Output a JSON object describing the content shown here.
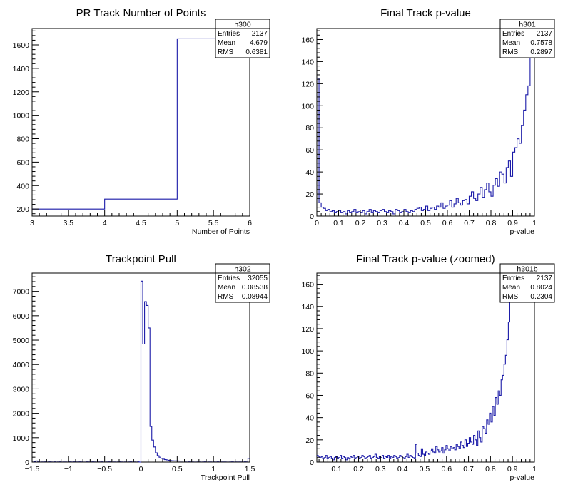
{
  "chart_data": [
    {
      "type": "histogram",
      "title": "PR Track Number of Points",
      "xlabel": "Number of Points",
      "ylabel": "",
      "xlim": [
        3,
        6
      ],
      "ylim": [
        140,
        1740
      ],
      "xticks": [
        3,
        3.5,
        4,
        4.5,
        5,
        5.5,
        6
      ],
      "xtick_labels": [
        "3",
        "3.5",
        "4",
        "4.5",
        "5",
        "5.5",
        "6"
      ],
      "yticks": [
        200,
        400,
        600,
        800,
        1000,
        1200,
        1400,
        1600
      ],
      "ytick_labels": [
        "200",
        "400",
        "600",
        "800",
        "1000",
        "1200",
        "1400",
        "1600"
      ],
      "bins": [
        [
          3,
          4,
          200
        ],
        [
          4,
          5,
          285
        ],
        [
          5,
          6,
          1652
        ]
      ],
      "stats": {
        "name": "h300",
        "rows": [
          {
            "label": "Entries",
            "value": "2137"
          },
          {
            "label": "Mean",
            "value": "4.679"
          },
          {
            "label": "RMS",
            "value": "0.6381"
          }
        ]
      }
    },
    {
      "type": "histogram",
      "title": "Final Track p-value",
      "xlabel": "p-value",
      "ylabel": "",
      "xlim": [
        0,
        1
      ],
      "ylim": [
        0,
        170
      ],
      "xticks": [
        0,
        0.1,
        0.2,
        0.3,
        0.4,
        0.5,
        0.6,
        0.7,
        0.8,
        0.9,
        1
      ],
      "xtick_labels": [
        "0",
        "0.1",
        "0.2",
        "0.3",
        "0.4",
        "0.5",
        "0.6",
        "0.7",
        "0.8",
        "0.9",
        "1"
      ],
      "yticks": [
        0,
        20,
        40,
        60,
        80,
        100,
        120,
        140,
        160
      ],
      "ytick_labels": [
        "0",
        "20",
        "40",
        "60",
        "80",
        "100",
        "120",
        "140",
        "160"
      ],
      "bin_width": 0.01,
      "x_start": 0,
      "values": [
        125,
        12,
        8,
        7,
        5,
        6,
        4,
        5,
        3,
        4,
        5,
        3,
        4,
        2,
        5,
        3,
        4,
        6,
        3,
        4,
        3,
        5,
        2,
        4,
        6,
        3,
        5,
        4,
        3,
        5,
        6,
        4,
        3,
        5,
        4,
        2,
        6,
        5,
        3,
        4,
        6,
        4,
        3,
        5,
        4,
        6,
        7,
        8,
        5,
        6,
        9,
        5,
        7,
        8,
        6,
        9,
        8,
        12,
        7,
        9,
        10,
        14,
        8,
        11,
        16,
        12,
        10,
        14,
        15,
        11,
        18,
        22,
        16,
        14,
        20,
        26,
        17,
        24,
        30,
        22,
        18,
        28,
        34,
        27,
        40,
        38,
        30,
        44,
        50,
        36,
        58,
        62,
        70,
        66,
        82,
        96,
        110,
        118,
        148,
        170
      ],
      "stats": {
        "name": "h301",
        "rows": [
          {
            "label": "Entries",
            "value": "2137"
          },
          {
            "label": "Mean",
            "value": "0.7578"
          },
          {
            "label": "RMS",
            "value": "0.2897"
          }
        ]
      }
    },
    {
      "type": "histogram",
      "title": "Trackpoint Pull",
      "xlabel": "Trackpoint Pull",
      "ylabel": "",
      "xlim": [
        -1.5,
        1.5
      ],
      "ylim": [
        0,
        7750
      ],
      "xticks": [
        -1.5,
        -1,
        -0.5,
        0,
        0.5,
        1,
        1.5
      ],
      "xtick_labels": [
        "−1.5",
        "−1",
        "−0.5",
        "0",
        "0.5",
        "1",
        "1.5"
      ],
      "yticks": [
        0,
        1000,
        2000,
        3000,
        4000,
        5000,
        6000,
        7000
      ],
      "ytick_labels": [
        "0",
        "1000",
        "2000",
        "3000",
        "4000",
        "5000",
        "6000",
        "7000"
      ],
      "bin_width": 0.025,
      "x_start": -1.5,
      "values": [
        40,
        30,
        45,
        35,
        40,
        38,
        42,
        36,
        40,
        35,
        38,
        40,
        36,
        42,
        38,
        35,
        40,
        37,
        39,
        41,
        36,
        38,
        40,
        35,
        37,
        39,
        36,
        38,
        40,
        42,
        36,
        38,
        40,
        35,
        39,
        41,
        37,
        38,
        36,
        40,
        42,
        38,
        35,
        39,
        41,
        37,
        40,
        38,
        36,
        39,
        41,
        38,
        40,
        37,
        36,
        42,
        38,
        40,
        39,
        0,
        7420,
        4840,
        6580,
        6420,
        5500,
        1460,
        900,
        620,
        380,
        260,
        200,
        150,
        120,
        100,
        90,
        70,
        60,
        55,
        50,
        48,
        45,
        42,
        40,
        44,
        38,
        40,
        36,
        42,
        38,
        40,
        41,
        37,
        39,
        40,
        38,
        36,
        42,
        39,
        37,
        40,
        38,
        41,
        36,
        40,
        39,
        38,
        37,
        40,
        42,
        38,
        36,
        40,
        39,
        41,
        38,
        37,
        40,
        36,
        39,
        150
      ],
      "stats": {
        "name": "h302",
        "rows": [
          {
            "label": "Entries",
            "value": "32055"
          },
          {
            "label": "Mean",
            "value": "0.08538"
          },
          {
            "label": "RMS",
            "value": "0.08944"
          }
        ]
      }
    },
    {
      "type": "histogram",
      "title": "Final Track p-value (zoomed)",
      "xlabel": "p-value",
      "ylabel": "",
      "xlim": [
        0.01,
        1
      ],
      "ylim": [
        0,
        170
      ],
      "xticks": [
        0.1,
        0.2,
        0.3,
        0.4,
        0.5,
        0.6,
        0.7,
        0.8,
        0.9,
        1
      ],
      "xtick_labels": [
        "0.1",
        "0.2",
        "0.3",
        "0.4",
        "0.5",
        "0.6",
        "0.7",
        "0.8",
        "0.9",
        "1"
      ],
      "yticks": [
        0,
        20,
        40,
        60,
        80,
        100,
        120,
        140,
        160
      ],
      "ytick_labels": [
        "0",
        "20",
        "40",
        "60",
        "80",
        "100",
        "120",
        "140",
        "160"
      ],
      "bin_width": 0.0066,
      "x_start": 0.01,
      "values": [
        6,
        5,
        4,
        5,
        3,
        4,
        6,
        3,
        4,
        5,
        3,
        2,
        4,
        5,
        3,
        4,
        6,
        3,
        5,
        4,
        2,
        4,
        3,
        5,
        4,
        6,
        3,
        4,
        5,
        3,
        4,
        6,
        5,
        3,
        4,
        5,
        6,
        3,
        4,
        5,
        7,
        4,
        3,
        5,
        4,
        6,
        3,
        5,
        4,
        6,
        3,
        5,
        4,
        6,
        5,
        3,
        4,
        6,
        5,
        4,
        3,
        5,
        7,
        4,
        6,
        5,
        4,
        3,
        16,
        8,
        6,
        5,
        12,
        7,
        6,
        9,
        8,
        7,
        10,
        12,
        9,
        8,
        14,
        11,
        9,
        10,
        13,
        8,
        11,
        15,
        12,
        10,
        14,
        12,
        13,
        11,
        16,
        14,
        12,
        18,
        15,
        13,
        20,
        14,
        17,
        22,
        18,
        16,
        24,
        20,
        15,
        28,
        22,
        18,
        32,
        30,
        26,
        38,
        34,
        44,
        36,
        50,
        42,
        58,
        52,
        64,
        60,
        74,
        78,
        88,
        96,
        110,
        126,
        148,
        160,
        170
      ],
      "stats": {
        "name": "h301b",
        "rows": [
          {
            "label": "Entries",
            "value": "2137"
          },
          {
            "label": "Mean",
            "value": "0.8024"
          },
          {
            "label": "RMS",
            "value": "0.2304"
          }
        ]
      }
    }
  ]
}
